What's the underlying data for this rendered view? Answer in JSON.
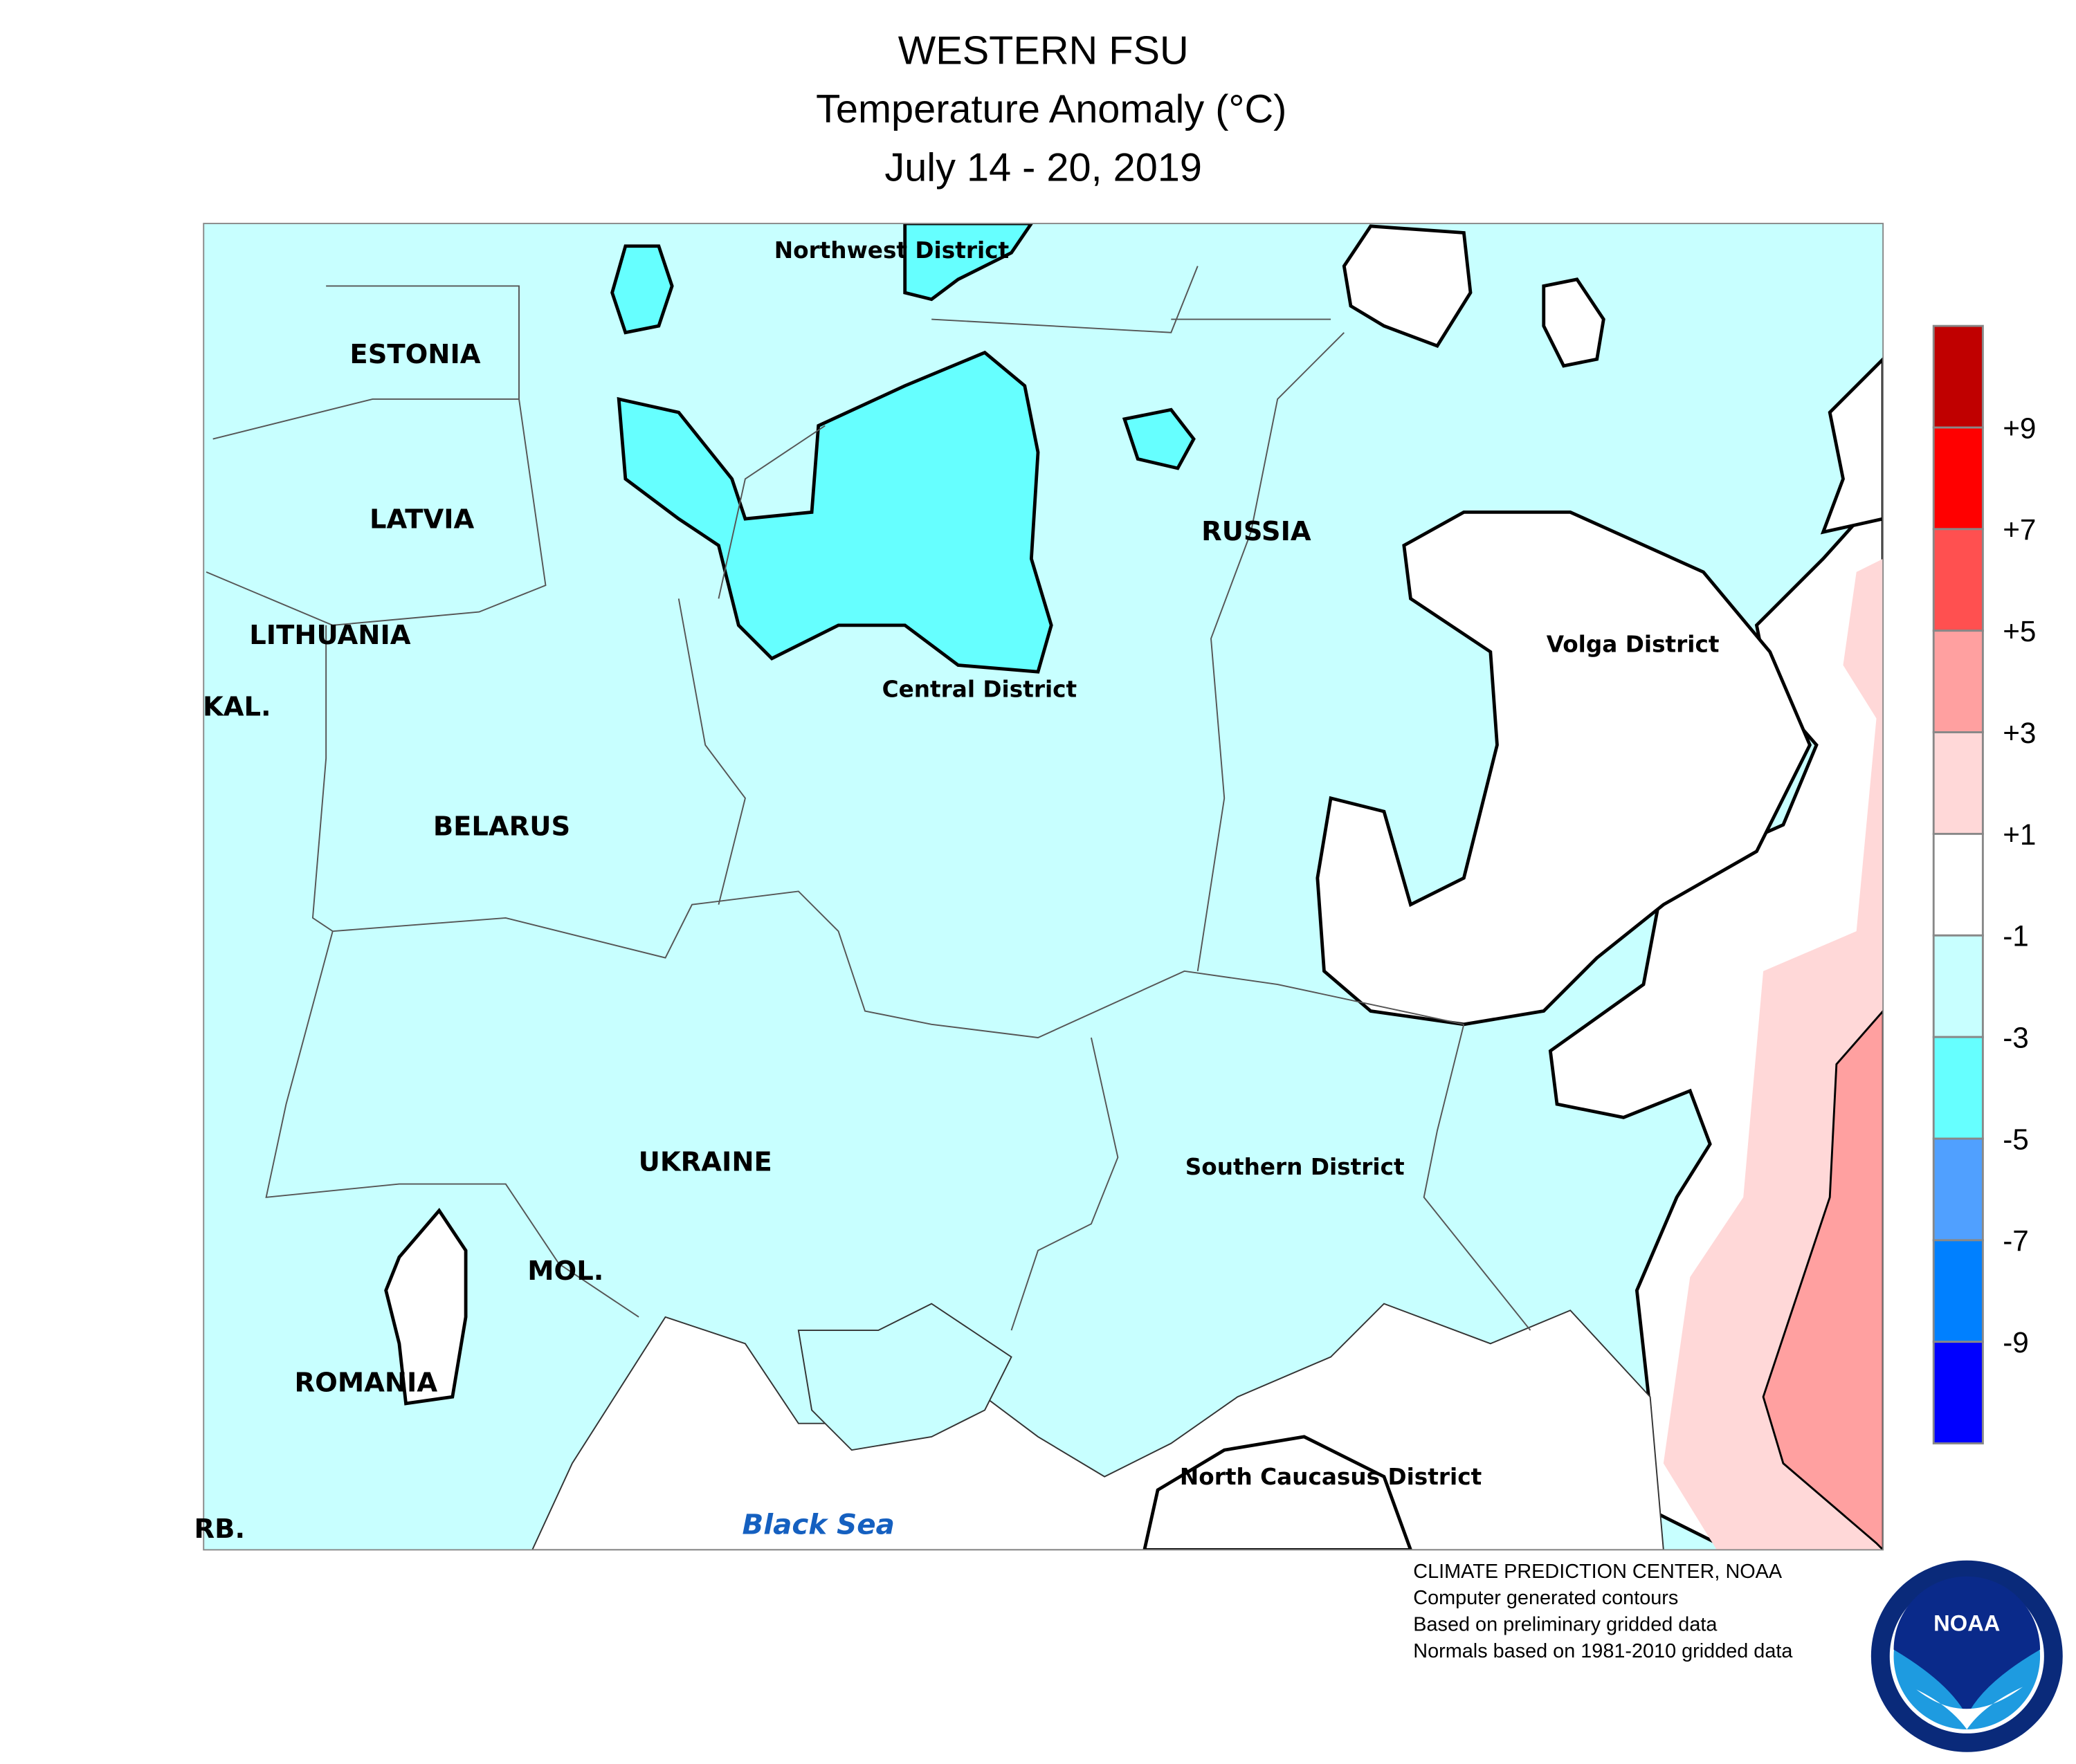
{
  "header": {
    "title": "WESTERN FSU",
    "subtitle": "Temperature Anomaly (°C)",
    "period": "July 14 - 20, 2019"
  },
  "map": {
    "labels": [
      "Northwest District",
      "ESTONIA",
      "LATVIA",
      "LITHUANIA",
      "KAL.",
      "BELARUS",
      "Central District",
      "RUSSIA",
      "Volga District",
      "UKRAINE",
      "Southern District",
      "MOL.",
      "ROMANIA",
      "North Caucasus District",
      "RB.",
      "Black Sea"
    ]
  },
  "legend": {
    "colors": [
      "#c00000",
      "#ff0000",
      "#ff5050",
      "#ffa0a0",
      "#ffd8d8",
      "#ffffff",
      "#c8ffff",
      "#66ffff",
      "#50a0ff",
      "#0080ff",
      "#0000ff"
    ],
    "labels": [
      "+9",
      "+7",
      "+5",
      "+3",
      "+1",
      "-1",
      "-3",
      "-5",
      "-7",
      "-9"
    ]
  },
  "footer": {
    "lines": [
      "CLIMATE PREDICTION CENTER, NOAA",
      "Computer generated contours",
      "Based on preliminary gridded data",
      "Normals based on 1981-2010 gridded data"
    ]
  },
  "logo": {
    "text": "NOAA"
  }
}
